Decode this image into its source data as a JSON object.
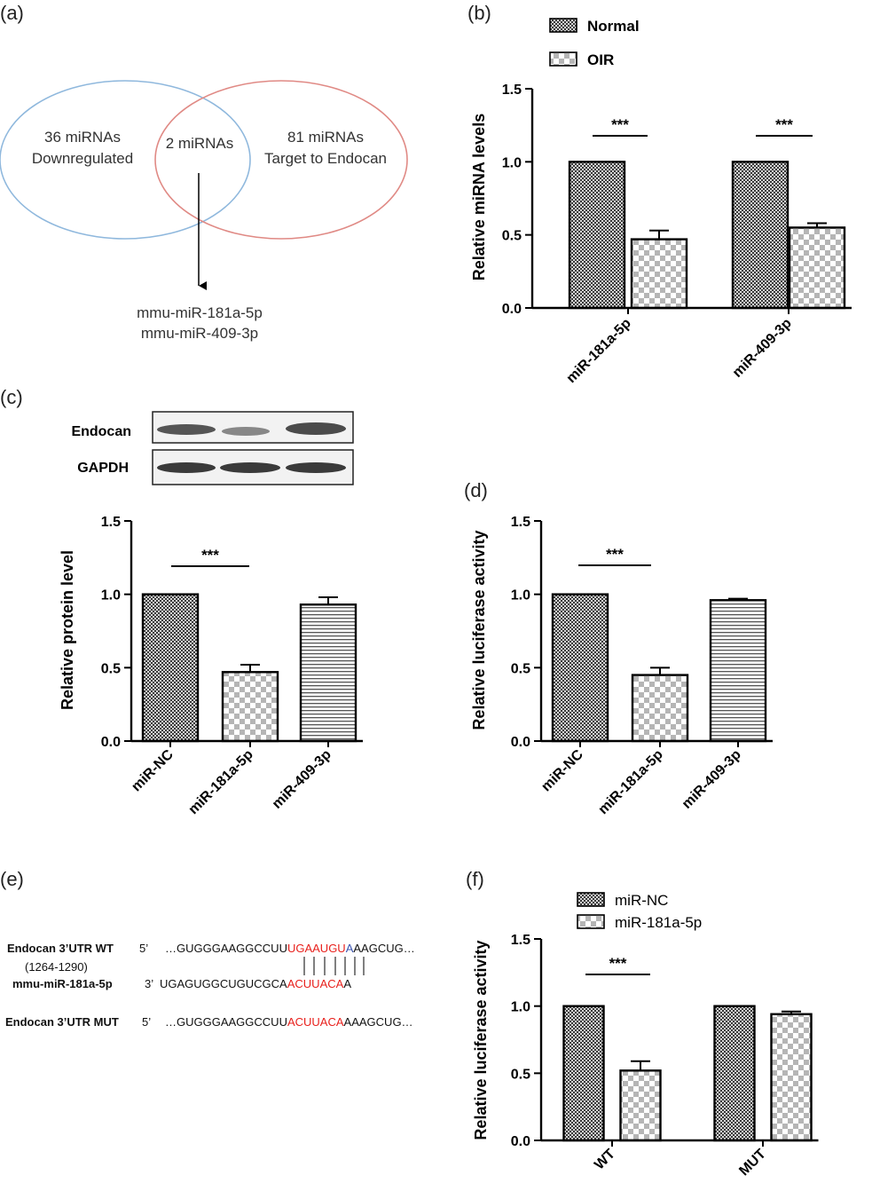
{
  "panels": {
    "a": "(a)",
    "b": "(b)",
    "c": "(c)",
    "d": "(d)",
    "e": "(e)",
    "f": "(f)"
  },
  "venn": {
    "left_line1": "36 miRNAs",
    "left_line2": "Downregulated",
    "center": "2 miRNAs",
    "right_line1": "81 miRNAs",
    "right_line2": "Target to Endocan",
    "result_line1": "mmu-miR-181a-5p",
    "result_line2": "mmu-miR-409-3p",
    "left_color": "#8fb8dd",
    "right_color": "#e08a85"
  },
  "western_blot": {
    "row1_label": "Endocan",
    "row2_label": "GAPDH"
  },
  "significance": "***",
  "chart_data": [
    {
      "panel": "b",
      "type": "bar",
      "categories": [
        "miR-181a-5p",
        "miR-409-3p"
      ],
      "series": [
        {
          "name": "Normal",
          "values": [
            1.0,
            1.0
          ],
          "errors": [
            0,
            0
          ],
          "pattern": "checker-dark"
        },
        {
          "name": "OIR",
          "values": [
            0.47,
            0.55
          ],
          "errors": [
            0.06,
            0.03
          ],
          "pattern": "checker-light"
        }
      ],
      "ylabel": "Relative miRNA levels",
      "ylim": [
        0,
        1.5
      ],
      "yticks": [
        "0.0",
        "0.5",
        "1.0",
        "1.5"
      ],
      "legend": "top",
      "grid": false,
      "annotations": [
        {
          "text": "***",
          "group": 0
        },
        {
          "text": "***",
          "group": 1
        }
      ]
    },
    {
      "panel": "c",
      "type": "bar",
      "categories": [
        "miR-NC",
        "miR-181a-5p",
        "miR-409-3p"
      ],
      "values": [
        1.0,
        0.47,
        0.93
      ],
      "errors": [
        0,
        0.05,
        0.05
      ],
      "patterns": [
        "checker-dark",
        "checker-light",
        "hlines"
      ],
      "ylabel": "Relative protein level",
      "ylim": [
        0,
        1.5
      ],
      "yticks": [
        "0.0",
        "0.5",
        "1.0",
        "1.5"
      ],
      "grid": false,
      "annotations": [
        {
          "text": "***",
          "from": 0,
          "to": 1
        }
      ]
    },
    {
      "panel": "d",
      "type": "bar",
      "categories": [
        "miR-NC",
        "miR-181a-5p",
        "miR-409-3p"
      ],
      "values": [
        1.0,
        0.45,
        0.96
      ],
      "errors": [
        0,
        0.05,
        0.01
      ],
      "patterns": [
        "checker-dark",
        "checker-light",
        "hlines"
      ],
      "ylabel": "Relative luciferase activity",
      "ylim": [
        0,
        1.5
      ],
      "yticks": [
        "0.0",
        "0.5",
        "1.0",
        "1.5"
      ],
      "grid": false,
      "annotations": [
        {
          "text": "***",
          "from": 0,
          "to": 1
        }
      ]
    },
    {
      "panel": "f",
      "type": "bar",
      "categories": [
        "WT",
        "MUT"
      ],
      "series": [
        {
          "name": "miR-NC",
          "values": [
            1.0,
            1.0
          ],
          "errors": [
            0,
            0
          ],
          "pattern": "checker-dark"
        },
        {
          "name": "miR-181a-5p",
          "values": [
            0.52,
            0.94
          ],
          "errors": [
            0.07,
            0.02
          ],
          "pattern": "checker-light"
        }
      ],
      "ylabel": "Relative luciferase activity",
      "ylim": [
        0,
        1.5
      ],
      "yticks": [
        "0.0",
        "0.5",
        "1.0",
        "1.5"
      ],
      "legend": "top",
      "grid": false,
      "annotations": [
        {
          "text": "***",
          "group": 0
        }
      ]
    }
  ],
  "sequences": {
    "wt_label": "Endocan 3’UTR WT",
    "wt_range": "(1264-1290)",
    "wt_end": "5’",
    "wt_seq_pre": "…GUGGGAAGGCCUU",
    "wt_seq_site": "UGAAUGU",
    "wt_seq_a": "A",
    "wt_seq_post": "AAGCUG…",
    "mir_label": "mmu-miR-181a-5p",
    "mir_end": "3’",
    "mir_seq_pre": "UGAGUGGCUGUCGCA",
    "mir_seq_site": "ACUUACA",
    "mir_seq_post": "A",
    "mut_label": "Endocan 3’UTR MUT",
    "mut_end": "5’",
    "mut_seq_pre": "…GUGGGAAGGCCUU",
    "mut_seq_site": "ACUUACA",
    "mut_seq_post": "AAAGCUG…",
    "site_color": "#e8201c",
    "a_color": "#3a53b0"
  }
}
